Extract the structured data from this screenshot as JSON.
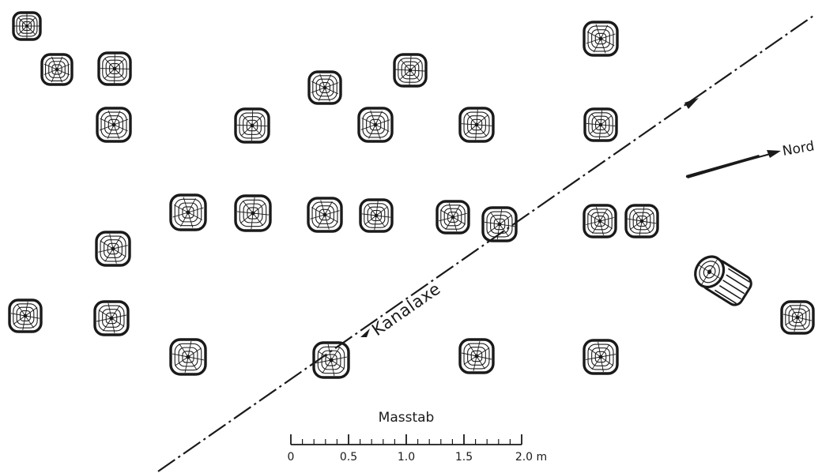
{
  "labels": {
    "canal_axis": "Kanalaxe",
    "north": "Nord",
    "scale_title": "Masstab"
  },
  "scale": {
    "ticks": [
      "0",
      "0.5",
      "1.0",
      "1.5",
      "2.0 m"
    ]
  },
  "colors": {
    "ink": "#1a1a1a",
    "paper": "#ffffff"
  },
  "icons": {
    "pile": "pile-cross-section-icon",
    "log": "fallen-log-icon",
    "north_arrow": "north-arrow-icon",
    "axis_arrow": "axis-direction-arrow-icon"
  }
}
